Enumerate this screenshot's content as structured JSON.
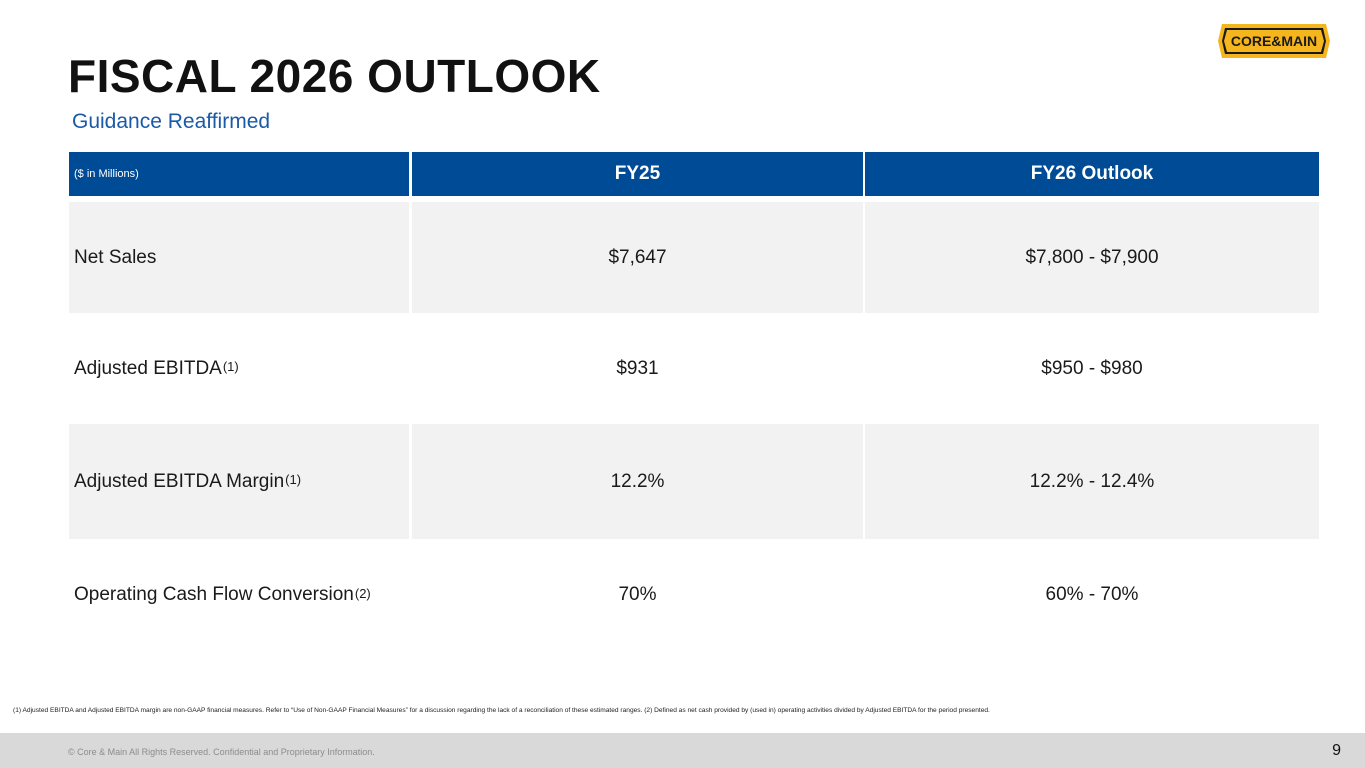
{
  "slide": {
    "title": "FISCAL 2026 OUTLOOK",
    "subtitle": "Guidance Reaffirmed",
    "logo_text": "CORE&MAIN"
  },
  "table": {
    "headers": [
      "($ in Millions)",
      "FY25",
      "FY26 Outlook"
    ],
    "rows": [
      {
        "label": "Net Sales",
        "note": "",
        "fy25": "$7,647",
        "fy26": "$7,800 - $7,900"
      },
      {
        "label": "Adjusted EBITDA",
        "note": "(1)",
        "fy25": "$931",
        "fy26": "$950 - $980"
      },
      {
        "label": "Adjusted EBITDA Margin",
        "note": "(1)",
        "fy25": "12.2%",
        "fy26": "12.2% - 12.4%"
      },
      {
        "label": "Operating Cash Flow Conversion",
        "note": "(2)",
        "fy25": "70%",
        "fy26": "60% - 70%"
      }
    ]
  },
  "footnote": "(1) Adjusted EBITDA and Adjusted EBITDA margin are non-GAAP financial measures. Refer to “Use of Non-GAAP Financial Measures” for a discussion regarding the lack of a reconciliation of these estimated ranges. (2) Defined as net cash provided by (used in) operating activities divided by Adjusted EBITDA for the period presented.",
  "footer": {
    "copyright": "© Core & Main  All Rights Reserved. Confidential and Proprietary Information.",
    "page_number": "9"
  },
  "colors": {
    "header_blue": "#004b96",
    "subtitle_blue": "#1b5aa6",
    "row_shade": "#f2f2f2",
    "logo_yellow": "#f5b51c"
  }
}
